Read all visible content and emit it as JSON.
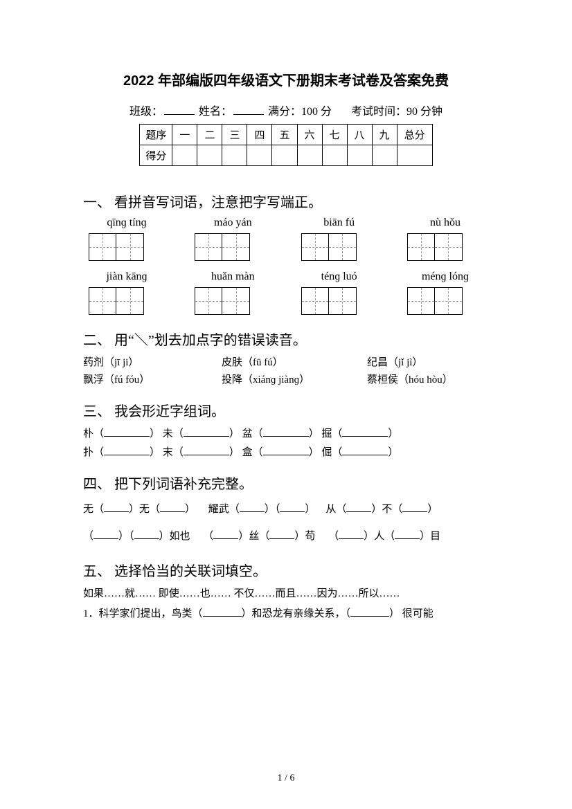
{
  "title": "2022 年部编版四年级语文下册期末考试卷及答案免费",
  "meta": {
    "class_label": "班级：",
    "name_label": "姓名：",
    "full_score_label": "满分：",
    "full_score_value": "100 分",
    "time_label": "考试时间：",
    "time_value": "90 分钟"
  },
  "score_table": {
    "header_row": [
      "题序",
      "一",
      "二",
      "三",
      "四",
      "五",
      "六",
      "七",
      "八",
      "九",
      "总分"
    ],
    "score_row_label": "得分"
  },
  "q1": {
    "heading": "一、 看拼音写词语，注意把字写端正。",
    "row1": [
      "qīnɡ tínɡ",
      "máo yán",
      "biān fú",
      "nù hǒu"
    ],
    "row2": [
      "jiàn kānɡ",
      "huǎn màn",
      "ténɡ luó",
      "ménɡ lónɡ"
    ]
  },
  "q2": {
    "heading": "二、 用“＼”划去加点字的错误读音。",
    "rows": [
      [
        {
          "word": "药剂",
          "pinyin": "（jī ji）"
        },
        {
          "word": "皮肤",
          "pinyin": "（fū fú）"
        },
        {
          "word": "纪昌",
          "pinyin": "（jǐ jì）"
        }
      ],
      [
        {
          "word": "飘浮",
          "pinyin": "（fú fóu）"
        },
        {
          "word": "投降",
          "pinyin": "（xiánɡ jiànɡ）"
        },
        {
          "word": "蔡桓侯",
          "pinyin": "（hóu hòu）"
        }
      ]
    ]
  },
  "q3": {
    "heading": "三、 我会形近字组词。",
    "lines": [
      [
        "朴",
        "未",
        "盆",
        "掘"
      ],
      [
        "扑",
        "末",
        "盒",
        "倔"
      ]
    ]
  },
  "q4": {
    "heading": "四、 把下列词语补充完整。",
    "line1_parts": [
      "无（",
      "）无（",
      "）",
      "耀武（",
      "）（",
      "）",
      "从（",
      "）不（",
      "）"
    ],
    "line2_parts": [
      "（",
      "）（",
      "）如也",
      "（",
      "）丝（",
      "）苟",
      "（",
      "）人（",
      "）目"
    ]
  },
  "q5": {
    "heading": "五、 选择恰当的关联词填空。",
    "conjunctions": "如果……就……    即使……也……    不仅……而且……因为……所以……",
    "item1_prefix": "1．科学家们提出，鸟类（",
    "item1_mid": "）和恐龙有亲缘关系，（",
    "item1_suffix": "） 很可能"
  },
  "footer": {
    "page": "1",
    "sep": " / ",
    "total": "6"
  }
}
